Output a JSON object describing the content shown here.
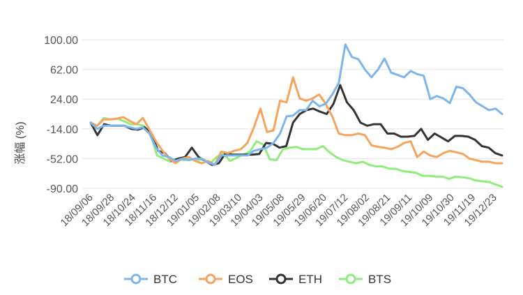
{
  "chart_data": {
    "type": "line",
    "title": "",
    "xlabel": "",
    "ylabel": "涨幅 (%)",
    "y_ticks": [
      100.0,
      62.0,
      24.0,
      -14.0,
      -52.0,
      -90.0
    ],
    "y_tick_labels": [
      "100.00",
      "62.00",
      "24.00",
      "-14.00",
      "-52.00",
      "-90.00"
    ],
    "ylim": [
      -90,
      100
    ],
    "x_tick_labels": [
      "18/09/06",
      "18/09/28",
      "18/10/24",
      "18/11/16",
      "18/12/12",
      "19/01/05",
      "19/02/08",
      "19/03/10",
      "19/04/03",
      "19/05/08",
      "19/05/29",
      "19/06/20",
      "19/07/12",
      "19/08/02",
      "19/08/21",
      "19/09/11",
      "19/10/09",
      "19/10/30",
      "19/11/19",
      "19/12/23"
    ],
    "grid": true,
    "legend_position": "bottom",
    "series": [
      {
        "name": "BTC",
        "color": "#7cb5ec",
        "values": [
          -6,
          -14,
          -10,
          -10,
          -10,
          -10,
          -12,
          -14,
          -12,
          -20,
          -38,
          -48,
          -50,
          -55,
          -52,
          -54,
          -52,
          -52,
          -57,
          -60,
          -48,
          -48,
          -48,
          -48,
          -48,
          -42,
          -40,
          -38,
          -32,
          -20,
          2,
          3,
          10,
          10,
          22,
          15,
          18,
          30,
          45,
          94,
          78,
          75,
          62,
          52,
          62,
          76,
          58,
          55,
          52,
          60,
          56,
          54,
          24,
          28,
          25,
          19,
          40,
          38,
          30,
          20,
          15,
          10,
          12,
          5
        ]
      },
      {
        "name": "EOS",
        "color": "#f7a35c",
        "values": [
          -6,
          -10,
          -2,
          -2,
          -1,
          1,
          -4,
          -8,
          0,
          -15,
          -30,
          -42,
          -52,
          -58,
          -52,
          -50,
          -55,
          -58,
          -55,
          -60,
          -43,
          -45,
          -42,
          -40,
          -32,
          -12,
          12,
          -18,
          -16,
          22,
          20,
          52,
          25,
          22,
          25,
          30,
          18,
          2,
          -20,
          -22,
          -22,
          -20,
          -22,
          -35,
          -37,
          -38,
          -40,
          -37,
          -32,
          -30,
          -50,
          -43,
          -48,
          -50,
          -45,
          -42,
          -44,
          -46,
          -52,
          -54,
          -56,
          -56,
          -58,
          -58
        ]
      },
      {
        "name": "ETH",
        "color": "#333333",
        "values": [
          -6,
          -22,
          -8,
          -10,
          -10,
          -10,
          -14,
          -15,
          -12,
          -20,
          -42,
          -45,
          -55,
          -52,
          -50,
          -38,
          -50,
          -55,
          -60,
          -58,
          -45,
          -47,
          -47,
          -47,
          -47,
          -46,
          -32,
          -33,
          -38,
          -36,
          -6,
          5,
          10,
          12,
          8,
          5,
          18,
          42,
          20,
          10,
          -6,
          -10,
          -8,
          -8,
          -20,
          -20,
          -24,
          -24,
          -23,
          -14,
          -28,
          -20,
          -25,
          -30,
          -23,
          -23,
          -24,
          -28,
          -36,
          -38,
          -45,
          -48
        ]
      },
      {
        "name": "BTS",
        "color": "#90ed7d",
        "values": [
          -6,
          -10,
          0,
          -2,
          -1,
          -4,
          -8,
          -8,
          -10,
          -20,
          -48,
          -52,
          -56,
          -53,
          -54,
          -53,
          -54,
          -53,
          -58,
          -50,
          -45,
          -55,
          -51,
          -47,
          -43,
          -30,
          -34,
          -53,
          -54,
          -40,
          -38,
          -37,
          -40,
          -40,
          -40,
          -36,
          -44,
          -50,
          -54,
          -56,
          -58,
          -56,
          -60,
          -62,
          -62,
          -65,
          -65,
          -68,
          -69,
          -70,
          -74,
          -74,
          -75,
          -75,
          -78,
          -75,
          -76,
          -77,
          -80,
          -81,
          -82,
          -85,
          -88
        ]
      }
    ]
  }
}
